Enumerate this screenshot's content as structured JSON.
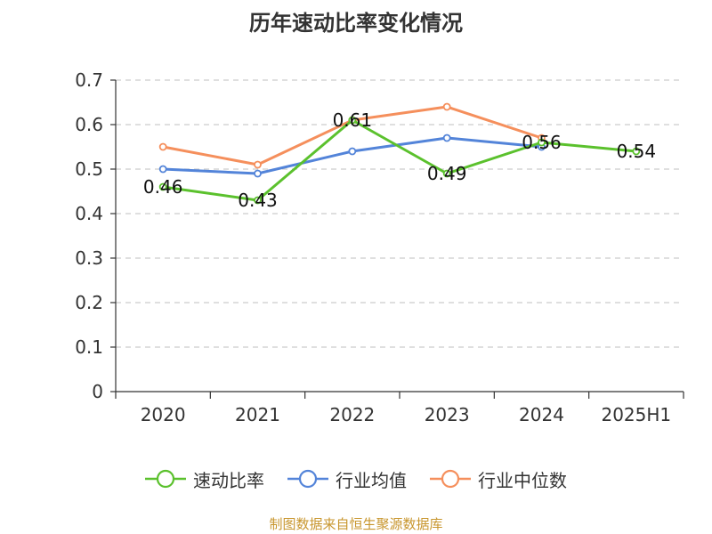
{
  "title": "历年速动比率变化情况",
  "source": "制图数据来自恒生聚源数据库",
  "colors": {
    "series_0": "#5bc12d",
    "series_1": "#5384d9",
    "series_2": "#f58f5c"
  },
  "chart_data": {
    "type": "line",
    "title": "历年速动比率变化情况",
    "categories": [
      "2020",
      "2021",
      "2022",
      "2023",
      "2024",
      "2025H1"
    ],
    "ylim": [
      0,
      0.7
    ],
    "yticks": [
      "0",
      "0.1",
      "0.2",
      "0.3",
      "0.4",
      "0.5",
      "0.6",
      "0.7"
    ],
    "grid": true,
    "legend_position": "bottom",
    "series": [
      {
        "name": "速动比率",
        "values": [
          0.46,
          0.43,
          0.61,
          0.49,
          0.56,
          0.54
        ],
        "labels": [
          "0.46",
          "0.43",
          "0.61",
          "0.49",
          "0.56",
          "0.54"
        ]
      },
      {
        "name": "行业均值",
        "values": [
          0.5,
          0.49,
          0.54,
          0.57,
          0.55,
          null
        ]
      },
      {
        "name": "行业中位数",
        "values": [
          0.55,
          0.51,
          0.61,
          0.64,
          0.57,
          null
        ]
      }
    ]
  }
}
